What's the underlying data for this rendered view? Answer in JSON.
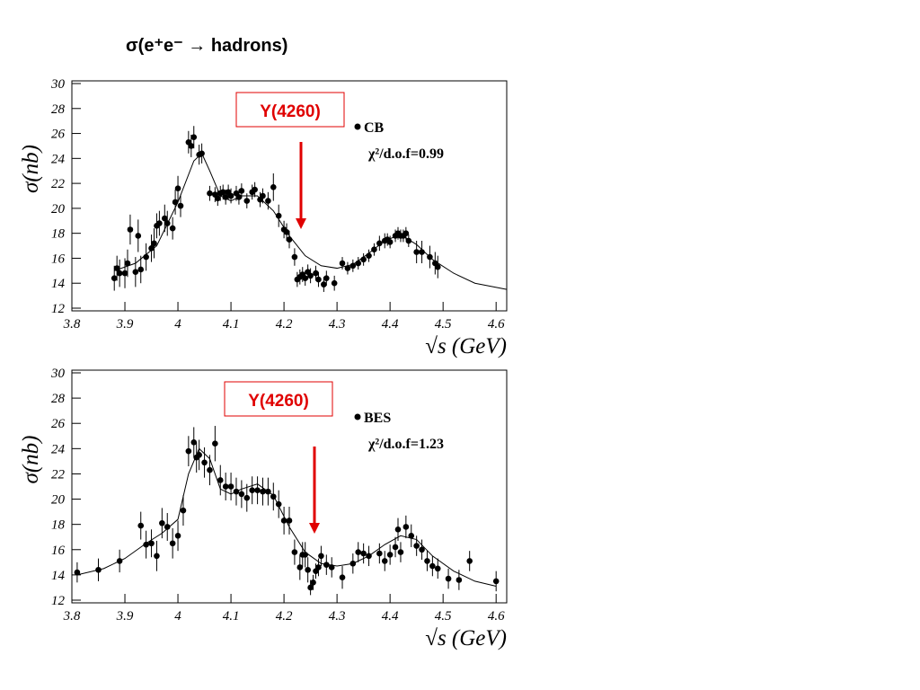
{
  "title": "σ(e⁺e⁻ → hadrons)",
  "chart_data": [
    {
      "type": "scatter",
      "xlabel": "√s (GeV)",
      "ylabel": "σ(nb)",
      "annotation": "Y(4260)",
      "fit_text": "χ²/d.o.f=0.99",
      "xlim": [
        3.8,
        4.62
      ],
      "ylim": [
        12,
        30
      ],
      "xticks": [
        3.8,
        3.9,
        4,
        4.1,
        4.2,
        4.3,
        4.4,
        4.5,
        4.6
      ],
      "yticks": [
        12,
        14,
        16,
        18,
        20,
        22,
        24,
        26,
        28,
        30
      ],
      "series": [
        {
          "name": "CB",
          "mode": "markers",
          "color": "#000000",
          "x": [
            3.88,
            3.885,
            3.89,
            3.9,
            3.905,
            3.91,
            3.92,
            3.925,
            3.93,
            3.94,
            3.95,
            3.955,
            3.96,
            3.965,
            3.975,
            3.98,
            3.99,
            3.995,
            4.0,
            4.005,
            4.02,
            4.025,
            4.03,
            4.04,
            4.045,
            4.06,
            4.07,
            4.075,
            4.08,
            4.085,
            4.09,
            4.095,
            4.1,
            4.11,
            4.115,
            4.12,
            4.13,
            4.14,
            4.145,
            4.155,
            4.16,
            4.17,
            4.18,
            4.19,
            4.2,
            4.205,
            4.21,
            4.22,
            4.225,
            4.23,
            4.235,
            4.24,
            4.245,
            4.25,
            4.26,
            4.265,
            4.275,
            4.28,
            4.295,
            4.31,
            4.32,
            4.33,
            4.34,
            4.35,
            4.36,
            4.37,
            4.38,
            4.39,
            4.395,
            4.4,
            4.41,
            4.415,
            4.42,
            4.425,
            4.43,
            4.435,
            4.45,
            4.46,
            4.475,
            4.485,
            4.49
          ],
          "values": [
            14.4,
            15.2,
            14.8,
            14.8,
            15.6,
            18.3,
            14.9,
            17.8,
            15.1,
            16.1,
            16.8,
            17.2,
            18.6,
            18.8,
            19.2,
            18.8,
            18.4,
            20.5,
            21.6,
            20.2,
            25.3,
            25.0,
            25.7,
            24.3,
            24.4,
            21.2,
            21.1,
            20.8,
            21.2,
            21.3,
            20.9,
            21.3,
            21.0,
            21.2,
            20.9,
            21.4,
            20.6,
            21.3,
            21.5,
            20.7,
            21.0,
            20.6,
            21.7,
            19.4,
            18.3,
            18.1,
            17.5,
            16.1,
            14.3,
            14.5,
            14.7,
            14.4,
            14.9,
            14.6,
            14.8,
            14.3,
            13.9,
            14.4,
            14.0,
            15.6,
            15.2,
            15.4,
            15.6,
            15.9,
            16.2,
            16.7,
            17.2,
            17.4,
            17.5,
            17.3,
            17.8,
            18.0,
            17.8,
            17.8,
            18.0,
            17.4,
            16.5,
            16.5,
            16.1,
            15.6,
            15.3
          ],
          "errors": [
            1.0,
            1.0,
            1.1,
            1.2,
            1.1,
            1.2,
            1.2,
            1.3,
            1.1,
            1.1,
            1.1,
            1.2,
            1.0,
            1.0,
            1.1,
            1.0,
            0.9,
            1.0,
            1.0,
            0.9,
            0.9,
            0.9,
            0.9,
            0.8,
            0.8,
            0.6,
            0.6,
            0.6,
            0.6,
            0.6,
            0.6,
            0.6,
            0.6,
            0.6,
            0.6,
            0.6,
            0.6,
            0.6,
            0.6,
            0.6,
            0.6,
            0.7,
            1.1,
            0.9,
            0.7,
            0.7,
            0.7,
            0.7,
            0.6,
            0.6,
            0.6,
            0.6,
            0.6,
            0.6,
            0.6,
            0.6,
            0.6,
            0.6,
            0.6,
            0.5,
            0.5,
            0.5,
            0.5,
            0.5,
            0.5,
            0.5,
            0.6,
            0.6,
            0.5,
            0.5,
            0.5,
            0.5,
            0.5,
            0.5,
            0.5,
            0.5,
            0.9,
            0.9,
            0.9,
            0.9,
            0.9
          ]
        },
        {
          "mode": "line",
          "color": "#000000",
          "x": [
            3.88,
            3.92,
            3.96,
            4.0,
            4.03,
            4.045,
            4.06,
            4.08,
            4.1,
            4.12,
            4.15,
            4.18,
            4.21,
            4.24,
            4.27,
            4.3,
            4.33,
            4.36,
            4.39,
            4.42,
            4.45,
            4.48,
            4.52,
            4.56,
            4.62
          ],
          "values": [
            15.0,
            15.6,
            17.0,
            20.5,
            23.8,
            24.4,
            23.0,
            21.0,
            20.6,
            21.0,
            21.0,
            19.8,
            17.8,
            16.2,
            15.4,
            15.2,
            15.5,
            16.4,
            17.4,
            17.9,
            17.1,
            15.9,
            14.8,
            14.0,
            13.5
          ]
        }
      ]
    },
    {
      "type": "scatter",
      "xlabel": "√s (GeV)",
      "ylabel": "σ(nb)",
      "annotation": "Y(4260)",
      "fit_text": "χ²/d.o.f=1.23",
      "xlim": [
        3.8,
        4.62
      ],
      "ylim": [
        12,
        30
      ],
      "xticks": [
        3.8,
        3.9,
        4,
        4.1,
        4.2,
        4.3,
        4.4,
        4.5,
        4.6
      ],
      "yticks": [
        12,
        14,
        16,
        18,
        20,
        22,
        24,
        26,
        28,
        30
      ],
      "series": [
        {
          "name": "BES",
          "mode": "markers",
          "color": "#000000",
          "x": [
            3.81,
            3.85,
            3.89,
            3.93,
            3.94,
            3.95,
            3.96,
            3.97,
            3.98,
            3.99,
            4.0,
            4.01,
            4.02,
            4.03,
            4.035,
            4.04,
            4.05,
            4.06,
            4.07,
            4.08,
            4.09,
            4.1,
            4.11,
            4.12,
            4.13,
            4.14,
            4.15,
            4.16,
            4.17,
            4.18,
            4.19,
            4.2,
            4.21,
            4.22,
            4.23,
            4.235,
            4.24,
            4.245,
            4.25,
            4.255,
            4.26,
            4.265,
            4.27,
            4.28,
            4.29,
            4.31,
            4.33,
            4.34,
            4.35,
            4.36,
            4.38,
            4.39,
            4.4,
            4.41,
            4.415,
            4.42,
            4.43,
            4.44,
            4.45,
            4.46,
            4.47,
            4.48,
            4.49,
            4.51,
            4.53,
            4.55,
            4.6
          ],
          "values": [
            14.2,
            14.4,
            15.1,
            17.9,
            16.4,
            16.5,
            15.5,
            18.1,
            17.8,
            16.5,
            17.1,
            19.1,
            23.8,
            24.5,
            23.3,
            23.5,
            22.9,
            22.3,
            24.4,
            21.5,
            21.0,
            21.0,
            20.6,
            20.4,
            20.1,
            20.7,
            20.7,
            20.6,
            20.6,
            20.2,
            19.6,
            18.3,
            18.3,
            15.8,
            14.6,
            15.6,
            15.6,
            14.4,
            13.0,
            13.4,
            14.3,
            14.6,
            15.5,
            14.8,
            14.6,
            13.8,
            14.9,
            15.8,
            15.7,
            15.5,
            15.7,
            15.1,
            15.6,
            16.2,
            17.6,
            15.8,
            17.8,
            17.1,
            16.3,
            16.0,
            15.1,
            14.7,
            14.5,
            13.7,
            13.6,
            15.1,
            13.5
          ],
          "errors": [
            0.8,
            0.9,
            0.9,
            1.1,
            1.1,
            1.1,
            1.2,
            1.2,
            1.1,
            1.2,
            1.2,
            1.2,
            1.2,
            1.2,
            1.2,
            1.2,
            1.2,
            1.2,
            1.4,
            1.2,
            1.1,
            1.1,
            1.1,
            1.1,
            1.1,
            1.1,
            1.1,
            1.1,
            1.1,
            1.1,
            1.1,
            1.1,
            1.1,
            1.0,
            1.0,
            1.0,
            1.0,
            1.0,
            0.6,
            0.6,
            0.6,
            0.7,
            0.8,
            0.8,
            0.8,
            0.9,
            0.8,
            0.8,
            0.8,
            0.8,
            0.8,
            0.8,
            0.8,
            0.8,
            0.9,
            0.8,
            0.9,
            0.9,
            0.8,
            0.8,
            0.8,
            0.8,
            0.8,
            0.8,
            0.8,
            0.8,
            0.8
          ]
        },
        {
          "mode": "line",
          "color": "#000000",
          "x": [
            3.81,
            3.86,
            3.9,
            3.94,
            3.97,
            4.0,
            4.02,
            4.04,
            4.06,
            4.08,
            4.1,
            4.12,
            4.15,
            4.18,
            4.21,
            4.24,
            4.27,
            4.3,
            4.33,
            4.36,
            4.39,
            4.42,
            4.45,
            4.48,
            4.52,
            4.56,
            4.6
          ],
          "values": [
            14.0,
            14.5,
            15.3,
            16.5,
            17.3,
            18.4,
            22.0,
            24.0,
            23.2,
            20.8,
            20.4,
            20.8,
            21.2,
            20.3,
            17.8,
            15.8,
            14.9,
            14.7,
            14.9,
            15.5,
            16.4,
            17.1,
            16.8,
            15.5,
            14.3,
            13.5,
            13.1
          ]
        }
      ]
    }
  ]
}
